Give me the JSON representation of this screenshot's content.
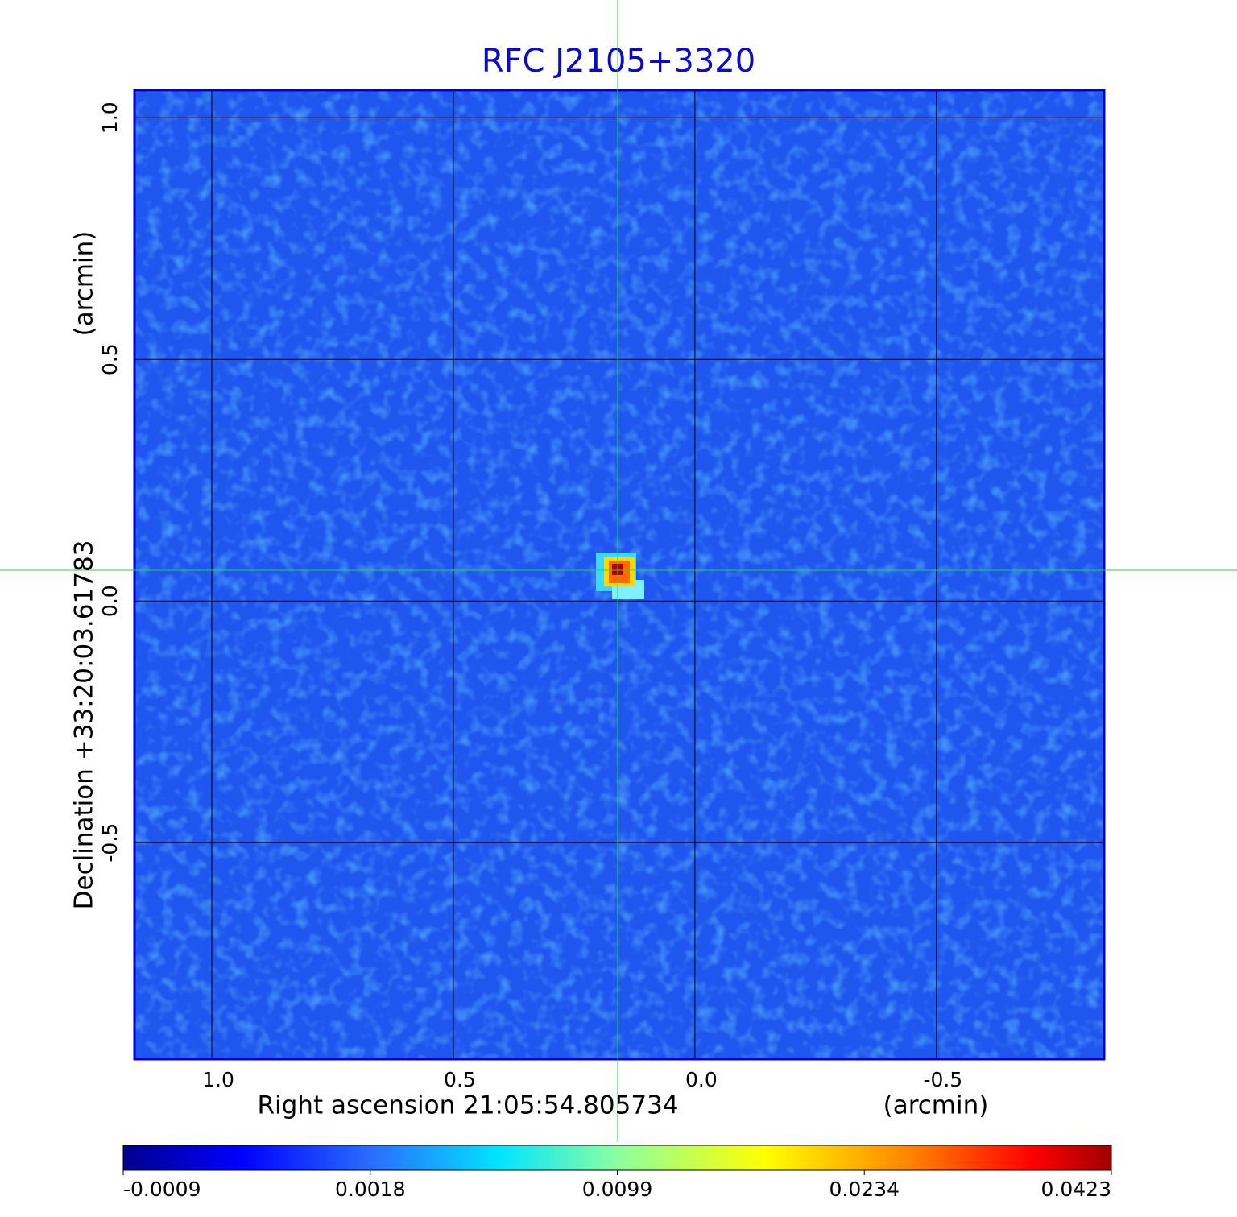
{
  "chart_data": {
    "type": "image",
    "title": "RFC J2105+3320",
    "xlabel": "Right ascension  21:05:54.805734",
    "xunit": "(arcmin)",
    "ylabel": "Declination  +33:20:03.61783",
    "yunit": "(arcmin)",
    "xlim": [
      1.16,
      -0.847
    ],
    "ylim": [
      -0.948,
      1.057
    ],
    "xticks": [
      {
        "value": 1,
        "label": "1.0"
      },
      0.5,
      {
        "value": 0,
        "label": "0.0"
      },
      -0.5
    ],
    "yticks": [
      {
        "value": 1,
        "label": "1.0"
      },
      0.5,
      {
        "value": 0,
        "label": "0.0"
      },
      -0.5
    ],
    "grid": true,
    "colorbar": {
      "ticks": [
        -0.0009,
        0.0018,
        0.0099,
        0.0234,
        0.0423
      ]
    }
  }
}
